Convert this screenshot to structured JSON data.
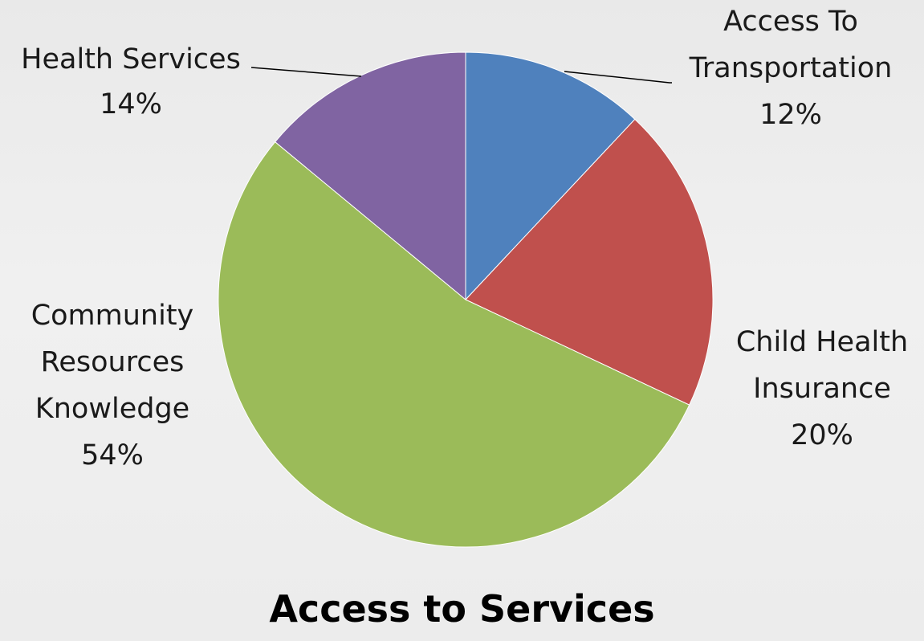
{
  "chart_data": {
    "type": "pie",
    "title": "Access to Services",
    "start_angle_deg": 0,
    "direction": "clockwise",
    "slices": [
      {
        "label": "Access To Transportation",
        "label_lines": [
          "Access To",
          "Transportation"
        ],
        "value": 12,
        "value_label": "12%",
        "color": "#4f81bd"
      },
      {
        "label": "Child Health Insurance",
        "label_lines": [
          "Child Health",
          "Insurance"
        ],
        "value": 20,
        "value_label": "20%",
        "color": "#c0504d"
      },
      {
        "label": "Community Resources Knowledge",
        "label_lines": [
          "Community",
          "Resources",
          "Knowledge"
        ],
        "value": 54,
        "value_label": "54%",
        "color": "#9bbb59"
      },
      {
        "label": "Health Services",
        "label_lines": [
          "Health Services"
        ],
        "value": 14,
        "value_label": "14%",
        "color": "#8064a2"
      }
    ]
  }
}
